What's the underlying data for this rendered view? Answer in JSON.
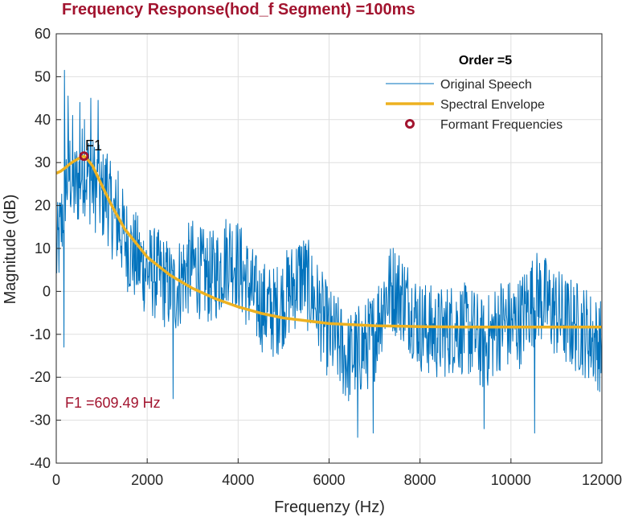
{
  "chart_data": {
    "type": "line",
    "title": "Frequency Response(hod_f Segment) =100ms",
    "xlabel": "Frequenzy (Hz)",
    "ylabel": "Magnitude (dB)",
    "xlim": [
      0,
      12000
    ],
    "ylim": [
      -40,
      60
    ],
    "xticks": [
      0,
      2000,
      4000,
      6000,
      8000,
      10000,
      12000
    ],
    "yticks": [
      -40,
      -30,
      -20,
      -10,
      0,
      10,
      20,
      30,
      40,
      50,
      60
    ],
    "grid": true,
    "legend": {
      "title": "Order =5",
      "placement": "top-right",
      "entries": [
        "Original Speech",
        "Spectral Envelope",
        "Formant Frequencies"
      ]
    },
    "colors": {
      "speech": "#0072BD",
      "envelope": "#EDB120",
      "formant": "#A2142F",
      "grid": "#dfdfdf",
      "axis": "#262626"
    },
    "series": [
      {
        "name": "Original Speech",
        "type": "noisy-line",
        "anchors": [
          [
            0,
            8
          ],
          [
            100,
            14
          ],
          [
            200,
            25
          ],
          [
            300,
            28
          ],
          [
            400,
            24
          ],
          [
            500,
            26
          ],
          [
            600,
            29
          ],
          [
            700,
            27
          ],
          [
            800,
            25
          ],
          [
            900,
            24
          ],
          [
            1000,
            22
          ],
          [
            1100,
            23
          ],
          [
            1200,
            19
          ],
          [
            1400,
            15
          ],
          [
            1600,
            10
          ],
          [
            1800,
            7
          ],
          [
            2000,
            5
          ],
          [
            2200,
            4
          ],
          [
            2400,
            2
          ],
          [
            2600,
            0
          ],
          [
            2800,
            4
          ],
          [
            3000,
            6
          ],
          [
            3200,
            4
          ],
          [
            3400,
            3
          ],
          [
            3600,
            5
          ],
          [
            3800,
            9
          ],
          [
            4000,
            6
          ],
          [
            4200,
            2
          ],
          [
            4400,
            -2
          ],
          [
            4600,
            -4
          ],
          [
            4800,
            -5
          ],
          [
            5000,
            -2
          ],
          [
            5200,
            1
          ],
          [
            5400,
            4
          ],
          [
            5600,
            0
          ],
          [
            5800,
            -5
          ],
          [
            6000,
            -10
          ],
          [
            6200,
            -12
          ],
          [
            6400,
            -16
          ],
          [
            6600,
            -14
          ],
          [
            6800,
            -13
          ],
          [
            7000,
            -10
          ],
          [
            7200,
            -2
          ],
          [
            7400,
            1
          ],
          [
            7600,
            -1
          ],
          [
            7800,
            -4
          ],
          [
            8000,
            -8
          ],
          [
            8200,
            -9
          ],
          [
            8400,
            -10
          ],
          [
            8600,
            -9
          ],
          [
            8800,
            -8
          ],
          [
            9000,
            -9
          ],
          [
            9200,
            -10
          ],
          [
            9400,
            -13
          ],
          [
            9600,
            -10
          ],
          [
            9800,
            -7
          ],
          [
            10000,
            -8
          ],
          [
            10200,
            -7
          ],
          [
            10400,
            -3
          ],
          [
            10600,
            -1
          ],
          [
            10800,
            -3
          ],
          [
            11000,
            -5
          ],
          [
            11200,
            -7
          ],
          [
            11400,
            -8
          ],
          [
            11600,
            -9
          ],
          [
            11800,
            -11
          ],
          [
            12000,
            -13
          ]
        ],
        "notable_points": [
          [
            180,
            51.5
          ],
          [
            260,
            45.5
          ],
          [
            360,
            41
          ],
          [
            520,
            44
          ],
          [
            620,
            40
          ],
          [
            760,
            45
          ],
          [
            920,
            44.5
          ],
          [
            1120,
            32
          ],
          [
            1360,
            28
          ],
          [
            170,
            -13
          ],
          [
            2570,
            -25
          ],
          [
            6630,
            -34
          ],
          [
            6970,
            -33
          ],
          [
            9410,
            -32
          ],
          [
            10520,
            -33
          ],
          [
            8260,
            -15
          ],
          [
            11980,
            -19
          ]
        ]
      },
      {
        "name": "Spectral Envelope",
        "type": "line",
        "x": [
          0,
          100,
          200,
          300,
          400,
          500,
          609.49,
          700,
          800,
          1000,
          1200,
          1500,
          2000,
          2500,
          3000,
          3500,
          4000,
          4500,
          5000,
          6000,
          7000,
          8000,
          9000,
          10000,
          11000,
          12000
        ],
        "values": [
          27.5,
          28,
          28.8,
          29.7,
          30.4,
          31.0,
          31.5,
          30.6,
          29.2,
          24.8,
          20.4,
          14.6,
          8.0,
          3.8,
          0.7,
          -1.7,
          -3.6,
          -5.1,
          -6.2,
          -7.5,
          -8.0,
          -8.2,
          -8.3,
          -8.3,
          -8.3,
          -8.3
        ]
      },
      {
        "name": "Formant Frequencies",
        "type": "scatter",
        "x": [
          609.49
        ],
        "values": [
          31.5
        ]
      }
    ],
    "annotations": [
      {
        "text": "F1",
        "x": 609.49,
        "y": 31.5
      },
      {
        "text": "F1 =609.49 Hz"
      }
    ]
  }
}
